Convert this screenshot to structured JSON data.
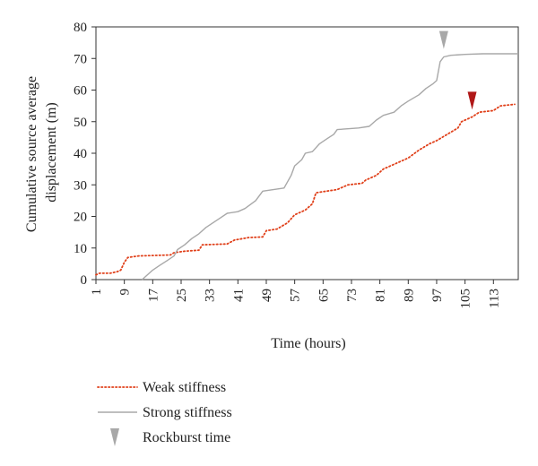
{
  "chart_data": {
    "type": "line",
    "title": "",
    "xlabel": "Time (hours)",
    "ylabel_lines": [
      "Cumulative source average",
      "displacement (m)"
    ],
    "xlim": [
      1,
      120
    ],
    "ylim": [
      0,
      80
    ],
    "x_ticks": [
      1,
      9,
      17,
      25,
      33,
      41,
      49,
      57,
      65,
      73,
      81,
      89,
      97,
      105,
      113
    ],
    "y_ticks": [
      0,
      10,
      20,
      30,
      40,
      50,
      60,
      70,
      80
    ],
    "grid": false,
    "legend_position": "below-left",
    "series": [
      {
        "name": "Weak stiffness",
        "style": "dotted",
        "color": "#e0401a",
        "points": [
          [
            1,
            1.5
          ],
          [
            2,
            2
          ],
          [
            5,
            2
          ],
          [
            7,
            2.5
          ],
          [
            8,
            3
          ],
          [
            9,
            5.5
          ],
          [
            10,
            7
          ],
          [
            13,
            7.5
          ],
          [
            22,
            7.8
          ],
          [
            23,
            8.5
          ],
          [
            26,
            9
          ],
          [
            30,
            9.3
          ],
          [
            31,
            11
          ],
          [
            38,
            11.3
          ],
          [
            40,
            12.5
          ],
          [
            44,
            13.3
          ],
          [
            48,
            13.5
          ],
          [
            49,
            15.5
          ],
          [
            52,
            16
          ],
          [
            55,
            18
          ],
          [
            57,
            20.5
          ],
          [
            60,
            22
          ],
          [
            62,
            24
          ],
          [
            63,
            27.5
          ],
          [
            69,
            28.5
          ],
          [
            72,
            30
          ],
          [
            76,
            30.5
          ],
          [
            77,
            31.5
          ],
          [
            80,
            33
          ],
          [
            82,
            35
          ],
          [
            86,
            37
          ],
          [
            89,
            38.5
          ],
          [
            92,
            41
          ],
          [
            95,
            43
          ],
          [
            97,
            44
          ],
          [
            100,
            46
          ],
          [
            103,
            48
          ],
          [
            104,
            50
          ],
          [
            107,
            51.5
          ],
          [
            109,
            53
          ],
          [
            113,
            53.5
          ],
          [
            115,
            55
          ],
          [
            119,
            55.5
          ]
        ]
      },
      {
        "name": "Strong stiffness",
        "style": "solid",
        "color": "#a8a8a8",
        "points": [
          [
            14,
            0
          ],
          [
            15,
            1
          ],
          [
            17,
            3
          ],
          [
            19,
            4.5
          ],
          [
            21,
            6
          ],
          [
            23,
            7.5
          ],
          [
            24,
            9.5
          ],
          [
            26,
            11
          ],
          [
            28,
            13
          ],
          [
            30,
            14.5
          ],
          [
            32,
            16.5
          ],
          [
            34,
            18
          ],
          [
            36,
            19.5
          ],
          [
            38,
            21
          ],
          [
            41,
            21.5
          ],
          [
            43,
            22.5
          ],
          [
            46,
            25
          ],
          [
            48,
            28
          ],
          [
            54,
            29
          ],
          [
            56,
            33
          ],
          [
            57,
            36
          ],
          [
            59,
            38
          ],
          [
            60,
            40
          ],
          [
            62,
            40.5
          ],
          [
            64,
            43
          ],
          [
            66,
            44.5
          ],
          [
            68,
            46
          ],
          [
            69,
            47.5
          ],
          [
            75,
            48
          ],
          [
            78,
            48.5
          ],
          [
            80,
            50.5
          ],
          [
            82,
            52
          ],
          [
            85,
            53
          ],
          [
            87,
            55
          ],
          [
            89,
            56.5
          ],
          [
            92,
            58.5
          ],
          [
            94,
            60.5
          ],
          [
            96,
            62
          ],
          [
            97,
            63
          ],
          [
            98,
            69
          ],
          [
            99,
            70.5
          ],
          [
            101,
            71
          ],
          [
            105,
            71.3
          ],
          [
            110,
            71.5
          ],
          [
            120,
            71.5
          ]
        ]
      }
    ],
    "markers": [
      {
        "name": "Rockburst time (strong stiffness)",
        "x": 99,
        "y": 73,
        "color": "#a8a8a8"
      },
      {
        "name": "Rockburst time (weak stiffness)",
        "x": 107,
        "y": 53.8,
        "color": "#b01818"
      }
    ]
  },
  "legend": [
    {
      "label": "Weak stiffness",
      "kind": "dotted-line",
      "color": "#e0401a"
    },
    {
      "label": "Strong stiffness",
      "kind": "solid-line",
      "color": "#a8a8a8"
    },
    {
      "label": "Rockburst time",
      "kind": "triangle",
      "color": "#a8a8a8"
    }
  ]
}
